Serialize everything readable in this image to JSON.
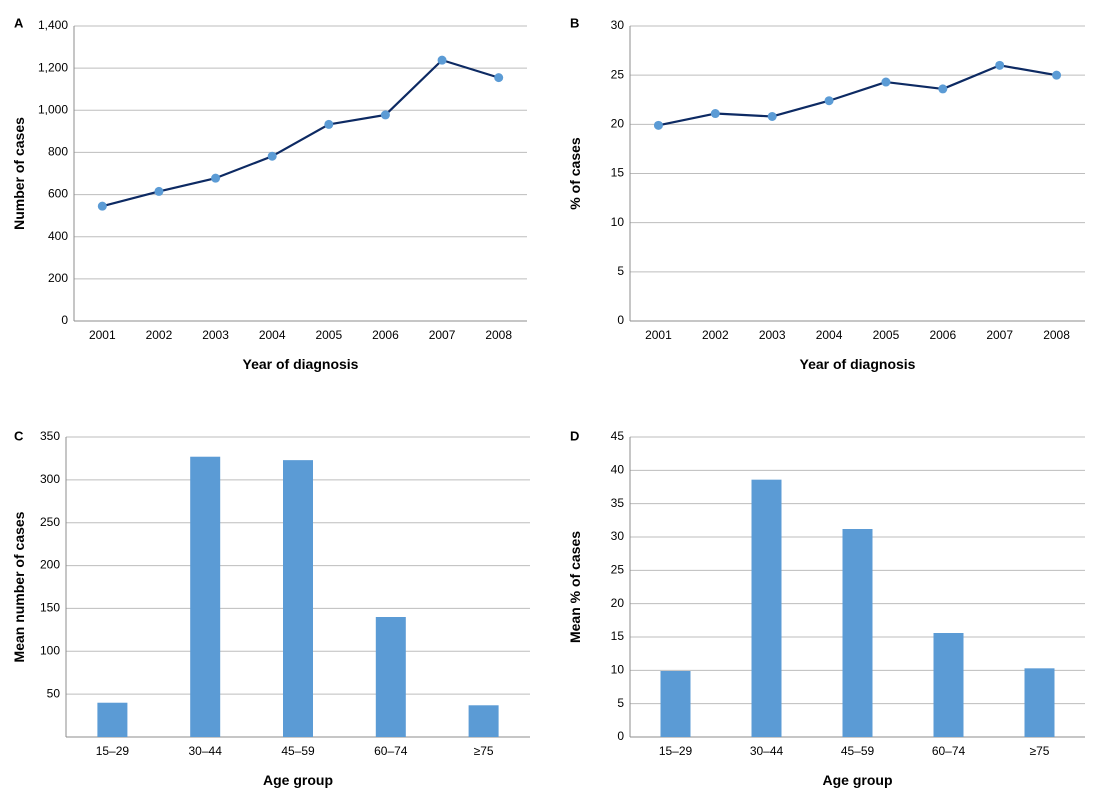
{
  "colors": {
    "line": "#0d2a63",
    "marker": "#5b9bd5",
    "bar": "#5b9bd5",
    "grid": "#bdbdbd"
  },
  "chart_data": [
    {
      "panel": "A",
      "type": "line",
      "xlabel": "Year of diagnosis",
      "ylabel": "Number of cases",
      "ylim": [
        0,
        1400
      ],
      "yticks": [
        0,
        200,
        400,
        600,
        800,
        1000,
        1200,
        1400
      ],
      "ytick_labels": [
        "0",
        "200",
        "400",
        "600",
        "800",
        "1,000",
        "1,200",
        "1,400"
      ],
      "categories": [
        "2001",
        "2002",
        "2003",
        "2004",
        "2005",
        "2006",
        "2007",
        "2008"
      ],
      "values": [
        545,
        615,
        678,
        782,
        933,
        978,
        1238,
        1155
      ],
      "grid": true
    },
    {
      "panel": "B",
      "type": "line",
      "xlabel": "Year of diagnosis",
      "ylabel": "% of cases",
      "ylim": [
        0,
        30
      ],
      "yticks": [
        0,
        5,
        10,
        15,
        20,
        25,
        30
      ],
      "ytick_labels": [
        "0",
        "5",
        "10",
        "15",
        "20",
        "25",
        "30"
      ],
      "categories": [
        "2001",
        "2002",
        "2003",
        "2004",
        "2005",
        "2006",
        "2007",
        "2008"
      ],
      "values": [
        19.9,
        21.1,
        20.8,
        22.4,
        24.3,
        23.6,
        26.0,
        25.0
      ],
      "grid": true
    },
    {
      "panel": "C",
      "type": "bar",
      "xlabel": "Age group",
      "ylabel": "Mean number of cases",
      "ylim": [
        0,
        350
      ],
      "yticks": [
        50,
        100,
        150,
        200,
        250,
        300,
        350
      ],
      "ytick_labels": [
        "50",
        "100",
        "150",
        "200",
        "250",
        "300",
        "350"
      ],
      "categories": [
        "15–29",
        "30–44",
        "45–59",
        "60–74",
        "≥75"
      ],
      "values": [
        40,
        327,
        323,
        140,
        37
      ],
      "grid": true
    },
    {
      "panel": "D",
      "type": "bar",
      "xlabel": "Age group",
      "ylabel": "Mean % of cases",
      "ylim": [
        0,
        45
      ],
      "yticks": [
        0,
        5,
        10,
        15,
        20,
        25,
        30,
        35,
        40,
        45
      ],
      "ytick_labels": [
        "0",
        "5",
        "10",
        "15",
        "20",
        "25",
        "30",
        "35",
        "40",
        "45"
      ],
      "categories": [
        "15–29",
        "30–44",
        "45–59",
        "60–74",
        "≥75"
      ],
      "values": [
        9.9,
        38.6,
        31.2,
        15.6,
        10.3
      ],
      "grid": true
    }
  ]
}
